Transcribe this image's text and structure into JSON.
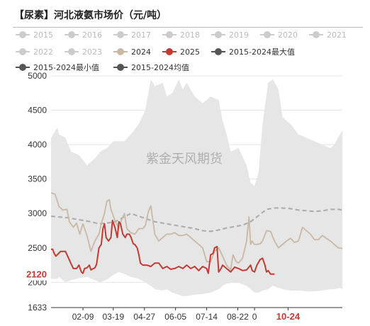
{
  "title": "【尿素】河北液氨市场价（元/吨）",
  "watermark": "紫金天风期货",
  "colors": {
    "band": "#e6e6e6",
    "inactive": "#cccccc",
    "y2024": "#c9b8a4",
    "y2025": "#c23a33",
    "avg": "#aaaaaa",
    "max": "#555555",
    "min": "#555555",
    "avgLegend": "#777777"
  },
  "legend": [
    {
      "label": "2015",
      "icon": "circle-icon",
      "color": "#cccccc",
      "active": false
    },
    {
      "label": "2016",
      "icon": "circle-icon",
      "color": "#cccccc",
      "active": false
    },
    {
      "label": "2017",
      "icon": "circle-icon",
      "color": "#cccccc",
      "active": false
    },
    {
      "label": "2018",
      "icon": "circle-icon",
      "color": "#cccccc",
      "active": false
    },
    {
      "label": "2019",
      "icon": "circle-icon",
      "color": "#cccccc",
      "active": false
    },
    {
      "label": "2020",
      "icon": "circle-icon",
      "color": "#cccccc",
      "active": false
    },
    {
      "label": "2021",
      "icon": "circle-icon",
      "color": "#cccccc",
      "active": false
    },
    {
      "label": "2022",
      "icon": "circle-icon",
      "color": "#cccccc",
      "active": false
    },
    {
      "label": "2023",
      "icon": "circle-icon",
      "color": "#cccccc",
      "active": false
    },
    {
      "label": "2024",
      "icon": "circle-icon",
      "color": "#c9b8a4",
      "active": true
    },
    {
      "label": "2025",
      "icon": "circle-icon",
      "color": "#c23a33",
      "active": true
    },
    {
      "label": "2015-2024最大值",
      "icon": "circle-icon",
      "color": "#555555",
      "active": true
    },
    {
      "label": "2015-2024最小值",
      "icon": "circle-icon",
      "color": "#555555",
      "active": true
    },
    {
      "label": "2015-2024均值",
      "icon": "circle-icon",
      "color": "#555555",
      "active": true
    }
  ],
  "chart_data": {
    "type": "line",
    "ylim": [
      1633,
      5000
    ],
    "yticks": [
      2000,
      2500,
      3000,
      3500,
      4000,
      4500,
      5000
    ],
    "ymin_label": "1633",
    "xtick_labels": [
      "02-09",
      "03-19",
      "04-27",
      "06-05",
      "07-14",
      "08-22",
      "0",
      "10-24"
    ],
    "xtick_days": [
      40,
      78,
      117,
      156,
      195,
      234,
      255,
      297
    ],
    "x_range_days": [
      0,
      365
    ],
    "last_value_label": "2120",
    "band": {
      "name": "2015-2024最大值 / 最小值",
      "x": [
        0,
        8,
        10,
        18,
        25,
        35,
        45,
        55,
        62,
        70,
        78,
        85,
        92,
        100,
        110,
        118,
        125,
        130,
        140,
        145,
        152,
        160,
        165,
        170,
        180,
        190,
        200,
        210,
        215,
        220,
        225,
        235,
        245,
        250,
        255,
        260,
        265,
        272,
        278,
        285,
        290,
        300,
        310,
        320,
        330,
        340,
        350,
        355,
        362,
        365
      ],
      "max": [
        4100,
        4250,
        4150,
        4100,
        3900,
        3850,
        3700,
        3800,
        3900,
        3950,
        4050,
        4050,
        4050,
        4150,
        4300,
        4500,
        4950,
        4850,
        4900,
        4700,
        4750,
        4950,
        4800,
        4900,
        4700,
        4600,
        4700,
        4650,
        4350,
        4150,
        3900,
        3950,
        3700,
        3450,
        3400,
        3600,
        4300,
        4900,
        4950,
        4800,
        4400,
        4300,
        4150,
        4100,
        4050,
        4000,
        3950,
        4000,
        4150,
        4200
      ],
      "min": [
        2050,
        2050,
        2080,
        2000,
        2030,
        2060,
        2080,
        2030,
        2000,
        2040,
        2110,
        2150,
        2120,
        2080,
        2050,
        2000,
        1950,
        1900,
        1880,
        1900,
        1850,
        1820,
        1800,
        1800,
        1820,
        1830,
        1850,
        1900,
        1950,
        1980,
        1990,
        1990,
        1950,
        1900,
        1850,
        1850,
        1880,
        1900,
        1950,
        1920,
        1900,
        1880,
        1880,
        1870,
        1870,
        1880,
        1900,
        1900,
        1920,
        1900
      ]
    },
    "series": [
      {
        "name": "2015-2024均值",
        "x": [
          0,
          10,
          20,
          30,
          40,
          50,
          60,
          70,
          80,
          90,
          100,
          110,
          120,
          130,
          140,
          150,
          160,
          170,
          180,
          190,
          200,
          210,
          220,
          230,
          240,
          250,
          260,
          270,
          280,
          290,
          300,
          310,
          320,
          330,
          340,
          350,
          360,
          365
        ],
        "values": [
          2960,
          2950,
          2940,
          2920,
          2900,
          2880,
          2850,
          2860,
          2880,
          2940,
          3000,
          2960,
          2920,
          2880,
          2860,
          2840,
          2820,
          2800,
          2780,
          2750,
          2740,
          2760,
          2790,
          2810,
          2830,
          2880,
          2970,
          3060,
          3080,
          3080,
          3070,
          3050,
          3040,
          3030,
          3040,
          3060,
          3060,
          3050
        ]
      },
      {
        "name": "2024",
        "x": [
          0,
          5,
          10,
          15,
          20,
          23,
          28,
          32,
          36,
          40,
          45,
          50,
          55,
          60,
          63,
          67,
          70,
          73,
          75,
          80,
          85,
          88,
          92,
          95,
          100,
          105,
          110,
          115,
          118,
          122,
          125,
          130,
          135,
          140,
          145,
          150,
          155,
          160,
          165,
          170,
          175,
          180,
          185,
          190,
          195,
          200,
          205,
          210,
          215,
          220,
          225,
          228,
          232,
          235,
          240,
          245,
          248,
          250,
          252,
          255,
          258,
          262,
          265,
          270,
          275,
          280,
          285,
          290,
          295,
          300,
          305,
          310,
          315,
          320,
          325,
          330,
          335,
          340,
          345,
          350,
          355,
          360,
          365
        ],
        "values": [
          3300,
          3280,
          3100,
          3050,
          3060,
          2880,
          2800,
          2860,
          2700,
          2850,
          2680,
          2450,
          2600,
          2700,
          2850,
          3000,
          3180,
          3200,
          3060,
          2900,
          2780,
          2900,
          3000,
          2780,
          2720,
          2700,
          2780,
          2780,
          2820,
          3030,
          3110,
          2700,
          2600,
          2650,
          2700,
          2700,
          2720,
          2680,
          2680,
          2700,
          2650,
          2600,
          2550,
          2500,
          2300,
          2300,
          2450,
          2500,
          2380,
          2250,
          2180,
          2400,
          2300,
          2280,
          2350,
          2600,
          2950,
          2550,
          2600,
          2550,
          2550,
          2560,
          2600,
          2750,
          2740,
          2600,
          2500,
          2550,
          2600,
          2640,
          2580,
          2600,
          2800,
          2750,
          2700,
          2620,
          2620,
          2680,
          2640,
          2600,
          2550,
          2500,
          2490
        ]
      },
      {
        "name": "2025",
        "x": [
          0,
          2,
          4,
          6,
          12,
          18,
          22,
          25,
          28,
          32,
          35,
          38,
          40,
          42,
          45,
          48,
          50,
          53,
          55,
          57,
          60,
          63,
          65,
          67,
          69,
          72,
          75,
          77,
          80,
          83,
          85,
          87,
          90,
          93,
          95,
          98,
          100,
          103,
          105,
          108,
          110,
          112,
          115,
          120,
          125,
          130,
          135,
          140,
          145,
          150,
          155,
          160,
          165,
          170,
          175,
          180,
          185,
          190,
          195,
          197,
          200,
          203,
          205,
          208,
          210,
          213,
          215,
          220,
          225,
          230,
          235,
          240,
          245,
          250,
          252,
          255,
          258,
          262,
          265,
          268,
          270,
          272,
          275,
          280
        ],
        "values": [
          2480,
          2480,
          2420,
          2380,
          2450,
          2450,
          2350,
          2270,
          2200,
          2200,
          2250,
          2150,
          2130,
          2200,
          2210,
          2250,
          2180,
          2200,
          2210,
          2260,
          2500,
          2550,
          2780,
          2850,
          2650,
          2600,
          2650,
          2900,
          2800,
          2650,
          2880,
          2850,
          2700,
          2650,
          2700,
          2700,
          2660,
          2560,
          2550,
          2500,
          2400,
          2280,
          2250,
          2250,
          2230,
          2280,
          2280,
          2200,
          2230,
          2190,
          2200,
          2230,
          2200,
          2250,
          2200,
          2230,
          2170,
          2230,
          2200,
          2130,
          2400,
          2420,
          2500,
          2520,
          2150,
          2200,
          2250,
          2200,
          2150,
          2220,
          2200,
          2170,
          2180,
          2250,
          2170,
          2150,
          2250,
          2330,
          2350,
          2250,
          2150,
          2170,
          2120,
          2120
        ]
      }
    ]
  }
}
